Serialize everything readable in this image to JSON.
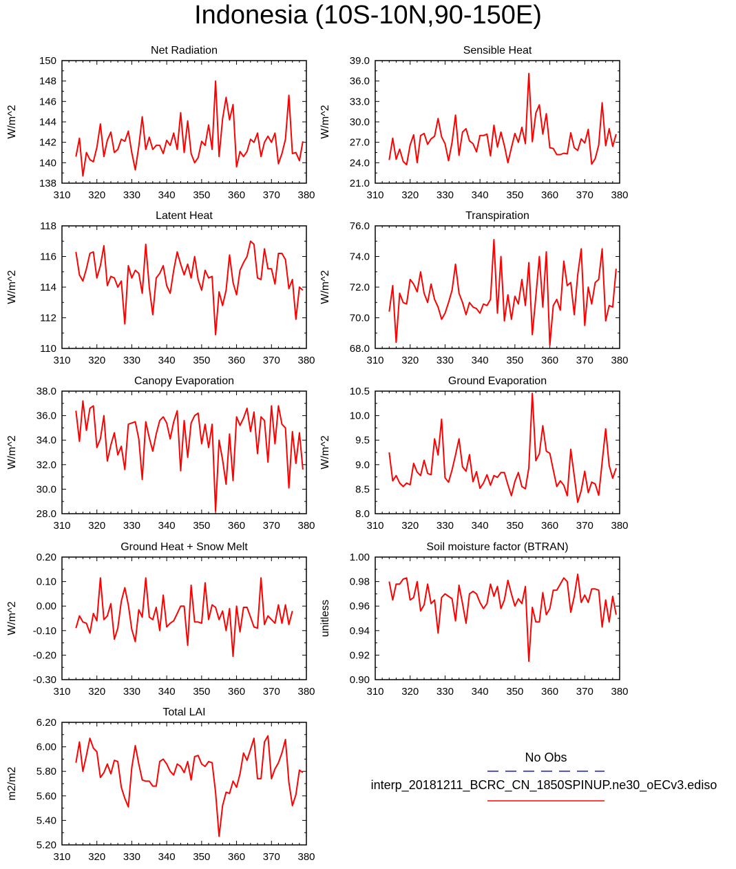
{
  "figure": {
    "title": "Indonesia (10S-10N,90-150E)"
  },
  "legend": {
    "obs_label": "No Obs",
    "obs_color": "#1a1acc",
    "run_label": "interp_20181211_BCRC_CN_1850SPINUP.ne30_oECv3.ediso",
    "run_color": "#ff0000"
  },
  "chart_data": [
    {
      "type": "line",
      "title": "Net Radiation",
      "ylabel": "W/m^2",
      "xlim": [
        310,
        380
      ],
      "ylim": [
        138,
        150
      ],
      "xticks": [
        "310",
        "320",
        "330",
        "340",
        "350",
        "360",
        "370",
        "380"
      ],
      "yticks": [
        "138",
        "140",
        "142",
        "144",
        "146",
        "148",
        "150"
      ],
      "x_start": 314,
      "values": [
        140.6,
        142.4,
        138.7,
        141.0,
        140.3,
        140.1,
        141.5,
        143.8,
        140.6,
        142.2,
        143.0,
        141.0,
        141.3,
        142.3,
        142.1,
        143.1,
        141.0,
        139.3,
        141.6,
        144.5,
        141.3,
        142.5,
        141.3,
        141.7,
        141.7,
        140.9,
        142.2,
        141.7,
        142.9,
        141.3,
        144.9,
        141.0,
        144.1,
        140.9,
        140.0,
        140.5,
        142.1,
        141.7,
        143.7,
        141.3,
        148.0,
        140.6,
        144.3,
        146.4,
        144.2,
        145.7,
        139.6,
        141.1,
        140.6,
        141.1,
        142.3,
        142.0,
        142.9,
        140.6,
        142.0,
        142.6,
        142.0,
        142.9,
        139.9,
        140.9,
        142.3,
        146.6,
        140.9,
        141.0,
        140.2,
        142.1
      ],
      "color": "#ff0000"
    },
    {
      "type": "line",
      "title": "Sensible Heat",
      "ylabel": "W/m^2",
      "xlim": [
        310,
        380
      ],
      "ylim": [
        21,
        39
      ],
      "xticks": [
        "310",
        "320",
        "330",
        "340",
        "350",
        "360",
        "370",
        "380"
      ],
      "yticks": [
        "21.0",
        "24.0",
        "27.0",
        "30.0",
        "33.0",
        "36.0",
        "39.0"
      ],
      "x_start": 314,
      "values": [
        24.4,
        27.6,
        24.5,
        26.0,
        24.2,
        23.7,
        26.6,
        28.1,
        24.0,
        28.0,
        28.3,
        26.7,
        27.5,
        27.9,
        30.5,
        27.8,
        26.8,
        24.3,
        27.0,
        31.0,
        25.1,
        28.5,
        29.0,
        27.2,
        26.8,
        25.6,
        28.0,
        28.0,
        28.2,
        25.0,
        29.5,
        26.3,
        28.5,
        26.5,
        24.0,
        26.2,
        28.3,
        27.0,
        29.2,
        26.8,
        37.1,
        27.1,
        31.3,
        32.5,
        28.2,
        31.2,
        26.2,
        26.1,
        25.2,
        25.2,
        25.4,
        25.3,
        28.4,
        26.2,
        25.8,
        27.5,
        26.9,
        28.9,
        23.8,
        24.6,
        26.6,
        32.8,
        26.5,
        29.0,
        26.4,
        28.2
      ],
      "color": "#ff0000"
    },
    {
      "type": "line",
      "title": "Latent Heat",
      "ylabel": "W/m^2",
      "xlim": [
        310,
        380
      ],
      "ylim": [
        110,
        118
      ],
      "xticks": [
        "310",
        "320",
        "330",
        "340",
        "350",
        "360",
        "370",
        "380"
      ],
      "yticks": [
        "110",
        "112",
        "114",
        "116",
        "118"
      ],
      "x_start": 314,
      "values": [
        116.3,
        114.8,
        114.4,
        115.2,
        116.2,
        116.3,
        114.6,
        115.4,
        116.7,
        114.1,
        114.7,
        114.6,
        114.0,
        114.4,
        111.6,
        115.4,
        114.6,
        115.1,
        114.9,
        113.6,
        116.8,
        114.0,
        112.2,
        114.6,
        114.9,
        115.4,
        114.1,
        113.6,
        115.1,
        116.3,
        115.5,
        114.8,
        115.5,
        114.6,
        116.0,
        114.5,
        113.8,
        115.1,
        114.6,
        114.7,
        110.9,
        113.7,
        112.8,
        113.8,
        116.1,
        114.3,
        113.5,
        115.1,
        115.6,
        116.0,
        117.0,
        116.8,
        114.6,
        114.5,
        116.5,
        115.2,
        115.2,
        114.2,
        116.2,
        116.2,
        115.8,
        113.9,
        114.5,
        111.9,
        114.0,
        113.8
      ],
      "color": "#ff0000"
    },
    {
      "type": "line",
      "title": "Transpiration",
      "ylabel": "W/m^2",
      "xlim": [
        310,
        380
      ],
      "ylim": [
        68,
        76
      ],
      "xticks": [
        "310",
        "320",
        "330",
        "340",
        "350",
        "360",
        "370",
        "380"
      ],
      "yticks": [
        "68.0",
        "70.0",
        "72.0",
        "74.0",
        "76.0"
      ],
      "x_start": 314,
      "values": [
        70.4,
        72.1,
        68.4,
        71.6,
        71.0,
        70.9,
        72.5,
        72.2,
        71.7,
        73.0,
        71.6,
        71.0,
        72.2,
        71.2,
        70.7,
        69.9,
        70.3,
        71.0,
        71.8,
        73.5,
        71.6,
        71.0,
        70.2,
        71.0,
        70.7,
        70.6,
        70.3,
        70.9,
        70.8,
        71.2,
        75.1,
        70.3,
        74.0,
        69.8,
        71.5,
        69.9,
        71.4,
        70.9,
        72.5,
        70.8,
        73.6,
        68.9,
        71.4,
        74.0,
        70.7,
        74.3,
        68.2,
        70.8,
        71.2,
        70.5,
        73.7,
        72.1,
        72.3,
        70.2,
        72.8,
        74.5,
        69.5,
        72.0,
        70.9,
        72.3,
        72.5,
        74.5,
        69.8,
        70.8,
        70.7,
        73.2
      ],
      "color": "#ff0000"
    },
    {
      "type": "line",
      "title": "Canopy Evaporation",
      "ylabel": "W/m^2",
      "xlim": [
        310,
        380
      ],
      "ylim": [
        28,
        38
      ],
      "xticks": [
        "310",
        "320",
        "330",
        "340",
        "350",
        "360",
        "370",
        "380"
      ],
      "yticks": [
        "28.0",
        "30.0",
        "32.0",
        "34.0",
        "36.0",
        "38.0"
      ],
      "x_start": 314,
      "values": [
        36.4,
        33.9,
        37.2,
        34.8,
        36.6,
        36.8,
        33.4,
        34.1,
        36.0,
        32.3,
        33.6,
        34.6,
        32.8,
        33.5,
        31.6,
        35.3,
        35.4,
        35.5,
        34.1,
        30.8,
        35.5,
        34.2,
        33.1,
        34.5,
        35.6,
        35.9,
        35.4,
        34.1,
        35.5,
        36.4,
        31.5,
        35.6,
        32.6,
        35.4,
        36.0,
        36.2,
        33.7,
        35.3,
        33.4,
        35.3,
        28.2,
        34.0,
        32.4,
        30.4,
        34.5,
        30.7,
        35.9,
        35.2,
        35.8,
        36.6,
        34.7,
        36.3,
        32.9,
        35.9,
        35.6,
        32.2,
        36.8,
        33.7,
        36.8,
        35.3,
        35.0,
        30.1,
        34.7,
        32.1,
        34.6,
        31.6
      ],
      "color": "#ff0000"
    },
    {
      "type": "line",
      "title": "Ground Evaporation",
      "ylabel": "W/m^2",
      "xlim": [
        310,
        380
      ],
      "ylim": [
        8,
        10.8
      ],
      "xticks": [
        "310",
        "320",
        "330",
        "340",
        "350",
        "360",
        "370",
        "380"
      ],
      "yticks": [
        "8.0",
        "8.5",
        "9.0",
        "9.5",
        "10.0",
        "10.5"
      ],
      "x_start": 314,
      "values": [
        9.4,
        8.75,
        8.87,
        8.7,
        8.62,
        8.7,
        8.66,
        9.15,
        8.95,
        8.87,
        9.22,
        8.92,
        8.89,
        9.71,
        9.34,
        10.16,
        8.82,
        8.72,
        9.0,
        9.34,
        9.71,
        9.07,
        8.97,
        9.35,
        8.73,
        8.96,
        8.58,
        8.7,
        8.89,
        8.65,
        8.87,
        8.83,
        8.94,
        8.94,
        8.66,
        8.41,
        8.74,
        8.94,
        8.62,
        8.57,
        9.05,
        10.75,
        9.21,
        9.37,
        10.01,
        9.43,
        9.38,
        9.0,
        8.62,
        8.75,
        8.65,
        8.41,
        9.47,
        8.86,
        8.26,
        8.53,
        8.97,
        8.48,
        8.72,
        8.68,
        8.42,
        9.18,
        9.94,
        9.1,
        8.81,
        9.04
      ],
      "color": "#ff0000"
    },
    {
      "type": "line",
      "title": "Ground Heat + Snow Melt",
      "ylabel": "W/m^2",
      "xlim": [
        310,
        380
      ],
      "ylim": [
        -0.3,
        0.2
      ],
      "xticks": [
        "310",
        "320",
        "330",
        "340",
        "350",
        "360",
        "370",
        "380"
      ],
      "yticks": [
        "-0.30",
        "-0.20",
        "-0.10",
        "0.00",
        "0.10",
        "0.20"
      ],
      "x_start": 314,
      "values": [
        -0.09,
        -0.04,
        -0.065,
        -0.07,
        -0.11,
        -0.03,
        -0.06,
        0.115,
        -0.055,
        -0.04,
        0.01,
        -0.135,
        -0.09,
        0.02,
        0.075,
        0.005,
        -0.095,
        -0.145,
        -0.015,
        -0.045,
        0.115,
        -0.045,
        -0.055,
        -0.005,
        -0.1,
        0.045,
        -0.085,
        -0.07,
        -0.06,
        -0.03,
        0.0,
        0.0,
        -0.16,
        0.085,
        -0.065,
        -0.065,
        -0.07,
        0.095,
        -0.055,
        0.005,
        -0.005,
        -0.055,
        -0.02,
        -0.1,
        -0.01,
        -0.205,
        0.0,
        -0.105,
        -0.005,
        -0.005,
        -0.045,
        -0.085,
        -0.09,
        0.115,
        -0.075,
        -0.04,
        -0.055,
        -0.07,
        0.005,
        -0.07,
        0.005,
        -0.075,
        -0.02
      ],
      "color": "#ff0000"
    },
    {
      "type": "line",
      "title": "Soil moisture factor (BTRAN)",
      "ylabel": "unitless",
      "xlim": [
        310,
        380
      ],
      "ylim": [
        0.9,
        1.0
      ],
      "xticks": [
        "310",
        "320",
        "330",
        "340",
        "350",
        "360",
        "370",
        "380"
      ],
      "yticks": [
        "0.90",
        "0.92",
        "0.94",
        "0.96",
        "0.98",
        "1.00"
      ],
      "x_start": 314,
      "values": [
        0.98,
        0.965,
        0.978,
        0.978,
        0.982,
        0.983,
        0.965,
        0.967,
        0.98,
        0.956,
        0.961,
        0.978,
        0.962,
        0.965,
        0.938,
        0.967,
        0.97,
        0.968,
        0.966,
        0.948,
        0.977,
        0.962,
        0.946,
        0.97,
        0.972,
        0.97,
        0.963,
        0.958,
        0.962,
        0.978,
        0.968,
        0.976,
        0.958,
        0.965,
        0.981,
        0.97,
        0.96,
        0.966,
        0.962,
        0.976,
        0.915,
        0.959,
        0.947,
        0.947,
        0.971,
        0.953,
        0.958,
        0.973,
        0.973,
        0.978,
        0.983,
        0.98,
        0.955,
        0.968,
        0.986,
        0.963,
        0.969,
        0.963,
        0.974,
        0.974,
        0.973,
        0.943,
        0.965,
        0.947,
        0.968,
        0.953
      ],
      "color": "#ff0000"
    },
    {
      "type": "line",
      "title": "Total LAI",
      "ylabel": "m2/m2",
      "xlim": [
        310,
        380
      ],
      "ylim": [
        5.2,
        6.2
      ],
      "xticks": [
        "310",
        "320",
        "330",
        "340",
        "350",
        "360",
        "370",
        "380"
      ],
      "yticks": [
        "5.20",
        "5.40",
        "5.60",
        "5.80",
        "6.00",
        "6.20"
      ],
      "x_start": 314,
      "values": [
        5.87,
        6.04,
        5.8,
        5.93,
        6.07,
        5.99,
        5.96,
        5.75,
        5.79,
        5.86,
        5.78,
        5.89,
        5.88,
        5.67,
        5.58,
        5.51,
        5.83,
        6.01,
        5.86,
        5.73,
        5.72,
        5.72,
        5.68,
        5.68,
        5.88,
        5.9,
        5.86,
        5.8,
        5.77,
        5.86,
        5.84,
        5.79,
        5.88,
        5.73,
        5.92,
        5.93,
        5.86,
        5.84,
        5.88,
        5.87,
        5.63,
        5.27,
        5.52,
        5.63,
        5.62,
        5.72,
        5.67,
        5.78,
        5.95,
        5.89,
        5.98,
        6.07,
        5.74,
        5.74,
        6.04,
        6.09,
        5.74,
        5.82,
        5.87,
        5.95,
        6.06,
        5.71,
        5.52,
        5.61,
        5.81,
        5.79
      ],
      "color": "#ff0000"
    }
  ]
}
